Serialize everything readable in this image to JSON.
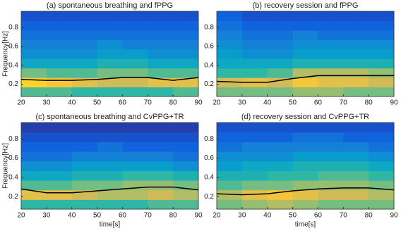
{
  "chart_data": [
    {
      "type": "heatmap",
      "title": "(a) spontaneous breathing and fPPG",
      "ylabel": "Frequency[Hz]",
      "xlim": [
        20,
        90
      ],
      "ylim": [
        0.07,
        0.97
      ],
      "xticks": [
        20,
        30,
        40,
        50,
        60,
        70,
        80,
        90
      ],
      "yticks": [
        0.2,
        0.4,
        0.6,
        0.8
      ],
      "x_bins": [
        20,
        30,
        40,
        50,
        60,
        70,
        80,
        90
      ],
      "y_bins": [
        0.07,
        0.17,
        0.27,
        0.37,
        0.47,
        0.57,
        0.67,
        0.77,
        0.87,
        0.97
      ],
      "colormap": [
        "#352a87",
        "#0f5cdd",
        "#1481d6",
        "#06a4ca",
        "#2eb7a4",
        "#87bf77",
        "#d1bb59",
        "#fec832",
        "#f9fb0e"
      ],
      "z": [
        [
          0.55,
          0.55,
          0.5,
          0.5,
          0.5,
          0.5,
          0.55
        ],
        [
          0.9,
          0.85,
          0.8,
          0.75,
          0.75,
          0.8,
          0.8
        ],
        [
          0.6,
          0.55,
          0.55,
          0.6,
          0.6,
          0.55,
          0.55
        ],
        [
          0.4,
          0.4,
          0.4,
          0.45,
          0.45,
          0.4,
          0.4
        ],
        [
          0.3,
          0.3,
          0.3,
          0.35,
          0.35,
          0.3,
          0.3
        ],
        [
          0.25,
          0.25,
          0.25,
          0.3,
          0.25,
          0.25,
          0.25
        ],
        [
          0.2,
          0.2,
          0.2,
          0.2,
          0.2,
          0.2,
          0.2
        ],
        [
          0.15,
          0.15,
          0.15,
          0.15,
          0.15,
          0.15,
          0.15
        ],
        [
          0.1,
          0.1,
          0.1,
          0.1,
          0.1,
          0.1,
          0.1
        ]
      ],
      "series": [
        {
          "color": "#000000",
          "x": [
            20,
            30,
            40,
            50,
            60,
            70,
            80,
            90
          ],
          "values": [
            0.25,
            0.24,
            0.24,
            0.25,
            0.27,
            0.27,
            0.24,
            0.27
          ]
        }
      ]
    },
    {
      "type": "heatmap",
      "title": "(b) recovery session and fPPG",
      "xlim": [
        20,
        90
      ],
      "ylim": [
        0.07,
        0.97
      ],
      "xticks": [
        20,
        30,
        40,
        50,
        60,
        70,
        80,
        90
      ],
      "yticks": [
        0.2,
        0.4,
        0.6,
        0.8
      ],
      "x_bins": [
        20,
        30,
        40,
        50,
        60,
        70,
        80,
        90
      ],
      "y_bins": [
        0.07,
        0.17,
        0.27,
        0.37,
        0.47,
        0.57,
        0.67,
        0.77,
        0.87,
        0.97
      ],
      "colormap": [
        "#352a87",
        "#0f5cdd",
        "#1481d6",
        "#06a4ca",
        "#2eb7a4",
        "#87bf77",
        "#d1bb59",
        "#fec832",
        "#f9fb0e"
      ],
      "z": [
        [
          0.6,
          0.6,
          0.6,
          0.65,
          0.65,
          0.6,
          0.6
        ],
        [
          0.75,
          0.8,
          0.75,
          0.85,
          0.8,
          0.8,
          0.75
        ],
        [
          0.5,
          0.5,
          0.55,
          0.7,
          0.7,
          0.7,
          0.65
        ],
        [
          0.4,
          0.4,
          0.4,
          0.45,
          0.45,
          0.45,
          0.45
        ],
        [
          0.35,
          0.3,
          0.3,
          0.35,
          0.35,
          0.35,
          0.35
        ],
        [
          0.3,
          0.25,
          0.25,
          0.3,
          0.3,
          0.3,
          0.3
        ],
        [
          0.25,
          0.2,
          0.2,
          0.25,
          0.2,
          0.2,
          0.2
        ],
        [
          0.2,
          0.15,
          0.15,
          0.15,
          0.15,
          0.15,
          0.15
        ],
        [
          0.15,
          0.1,
          0.1,
          0.1,
          0.1,
          0.1,
          0.1
        ]
      ],
      "series": [
        {
          "color": "#000000",
          "x": [
            20,
            30,
            40,
            50,
            60,
            70,
            80,
            90
          ],
          "values": [
            0.23,
            0.22,
            0.22,
            0.26,
            0.29,
            0.29,
            0.29,
            0.29
          ]
        }
      ]
    },
    {
      "type": "heatmap",
      "title": "(c) spontaneous breathing and CvPPG+TR",
      "xlabel": "time[s]",
      "ylabel": "Frequency[Hz]",
      "xlim": [
        20,
        90
      ],
      "ylim": [
        0.07,
        0.97
      ],
      "xticks": [
        20,
        30,
        40,
        50,
        60,
        70,
        80,
        90
      ],
      "yticks": [
        0.2,
        0.4,
        0.6,
        0.8
      ],
      "x_bins": [
        20,
        30,
        40,
        50,
        60,
        70,
        80,
        90
      ],
      "y_bins": [
        0.07,
        0.17,
        0.27,
        0.37,
        0.47,
        0.57,
        0.67,
        0.77,
        0.87,
        0.97
      ],
      "colormap": [
        "#352a87",
        "#0f5cdd",
        "#1481d6",
        "#06a4ca",
        "#2eb7a4",
        "#87bf77",
        "#d1bb59",
        "#fec832",
        "#f9fb0e"
      ],
      "z": [
        [
          0.5,
          0.5,
          0.5,
          0.5,
          0.5,
          0.55,
          0.55
        ],
        [
          0.8,
          0.8,
          0.75,
          0.7,
          0.7,
          0.75,
          0.7
        ],
        [
          0.55,
          0.55,
          0.6,
          0.6,
          0.65,
          0.65,
          0.6
        ],
        [
          0.4,
          0.4,
          0.45,
          0.45,
          0.5,
          0.5,
          0.45
        ],
        [
          0.3,
          0.3,
          0.35,
          0.35,
          0.35,
          0.35,
          0.3
        ],
        [
          0.2,
          0.2,
          0.25,
          0.25,
          0.25,
          0.25,
          0.2
        ],
        [
          0.15,
          0.15,
          0.15,
          0.2,
          0.15,
          0.15,
          0.15
        ],
        [
          0.1,
          0.1,
          0.1,
          0.1,
          0.1,
          0.1,
          0.1
        ],
        [
          0.05,
          0.05,
          0.05,
          0.05,
          0.05,
          0.05,
          0.05
        ]
      ],
      "series": [
        {
          "color": "#000000",
          "x": [
            20,
            30,
            40,
            50,
            60,
            70,
            80,
            90
          ],
          "values": [
            0.28,
            0.24,
            0.24,
            0.26,
            0.28,
            0.3,
            0.3,
            0.27
          ]
        }
      ]
    },
    {
      "type": "heatmap",
      "title": "(d) recovery session and CvPPG+TR",
      "xlabel": "time[s]",
      "xlim": [
        20,
        90
      ],
      "ylim": [
        0.07,
        0.97
      ],
      "xticks": [
        20,
        30,
        40,
        50,
        60,
        70,
        80,
        90
      ],
      "yticks": [
        0.2,
        0.4,
        0.6,
        0.8
      ],
      "x_bins": [
        20,
        30,
        40,
        50,
        60,
        70,
        80,
        90
      ],
      "y_bins": [
        0.07,
        0.17,
        0.27,
        0.37,
        0.47,
        0.57,
        0.67,
        0.77,
        0.87,
        0.97
      ],
      "colormap": [
        "#352a87",
        "#0f5cdd",
        "#1481d6",
        "#06a4ca",
        "#2eb7a4",
        "#87bf77",
        "#d1bb59",
        "#fec832",
        "#f9fb0e"
      ],
      "z": [
        [
          0.6,
          0.65,
          0.7,
          0.65,
          0.6,
          0.6,
          0.6
        ],
        [
          0.7,
          0.8,
          0.85,
          0.8,
          0.75,
          0.75,
          0.7
        ],
        [
          0.55,
          0.6,
          0.6,
          0.65,
          0.65,
          0.65,
          0.6
        ],
        [
          0.45,
          0.45,
          0.5,
          0.5,
          0.55,
          0.55,
          0.5
        ],
        [
          0.35,
          0.4,
          0.4,
          0.45,
          0.45,
          0.45,
          0.4
        ],
        [
          0.3,
          0.3,
          0.3,
          0.35,
          0.35,
          0.35,
          0.3
        ],
        [
          0.2,
          0.25,
          0.25,
          0.25,
          0.25,
          0.25,
          0.2
        ],
        [
          0.15,
          0.15,
          0.15,
          0.2,
          0.2,
          0.15,
          0.15
        ],
        [
          0.1,
          0.1,
          0.1,
          0.1,
          0.1,
          0.1,
          0.1
        ]
      ],
      "series": [
        {
          "color": "#000000",
          "x": [
            20,
            30,
            40,
            50,
            60,
            70,
            80,
            90
          ],
          "values": [
            0.23,
            0.22,
            0.23,
            0.26,
            0.28,
            0.29,
            0.29,
            0.27
          ]
        }
      ]
    }
  ]
}
